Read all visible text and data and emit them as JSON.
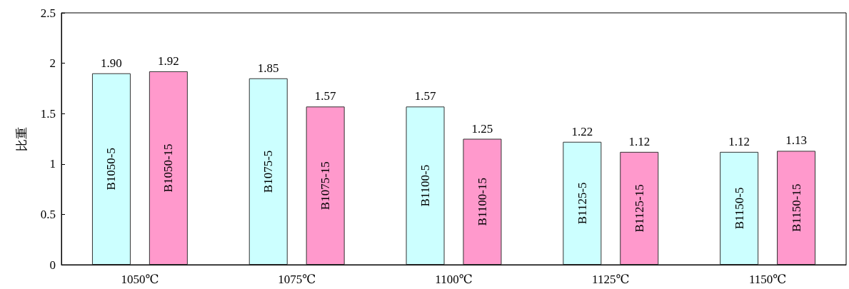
{
  "chart_data": {
    "type": "bar",
    "ylabel": "比重",
    "categories": [
      "1050℃",
      "1075℃",
      "1100℃",
      "1125℃",
      "1150℃"
    ],
    "series": [
      {
        "color": "#ccffff",
        "values": [
          1.9,
          1.85,
          1.57,
          1.22,
          1.12
        ],
        "value_labels": [
          "1.90",
          "1.85",
          "1.57",
          "1.22",
          "1.12"
        ]
      },
      {
        "color": "#ff99cc",
        "values": [
          1.92,
          1.57,
          1.25,
          1.12,
          1.13
        ],
        "value_labels": [
          "1.92",
          "1.57",
          "1.25",
          "1.12",
          "1.13"
        ]
      }
    ],
    "annotations": [
      "B1050-5",
      "B1050-15",
      "B1075-5",
      "B1075-15",
      "B1100-5",
      "B1100-15",
      "B1125-5",
      "B1125-15",
      "B1150-5",
      "B1150-15"
    ],
    "ylim": [
      0,
      2.5
    ],
    "yticks": [
      0,
      0.5,
      1,
      1.5,
      2,
      2.5
    ]
  }
}
